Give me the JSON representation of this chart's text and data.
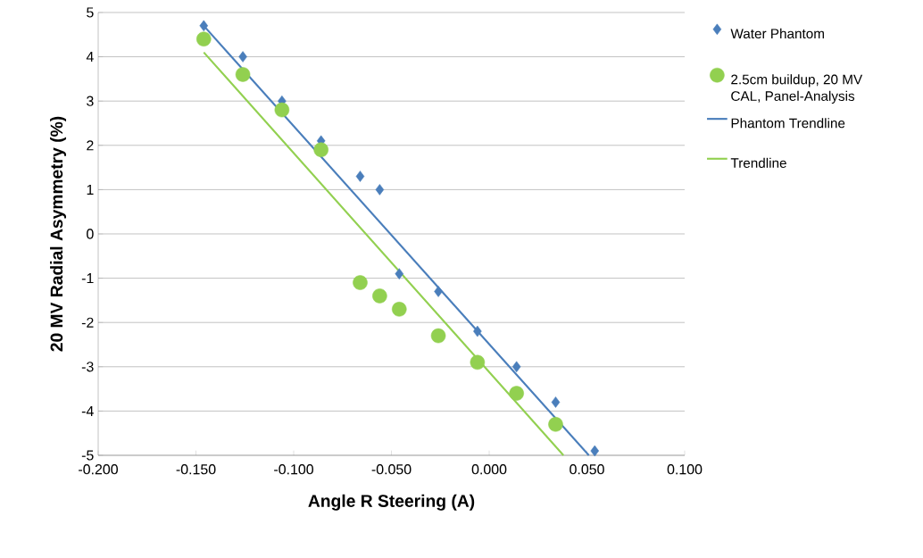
{
  "chart_data": {
    "type": "scatter",
    "xlabel": "Angle R Steering (A)",
    "ylabel": "20 MV Radial Asymmetry (%)",
    "xlim": [
      -0.2,
      0.1
    ],
    "ylim": [
      -5,
      5
    ],
    "xticks": [
      {
        "value": -0.2,
        "label": "-0.200"
      },
      {
        "value": -0.15,
        "label": "-0.150"
      },
      {
        "value": -0.1,
        "label": "-0.100"
      },
      {
        "value": -0.05,
        "label": "-0.050"
      },
      {
        "value": 0,
        "label": "0.000"
      },
      {
        "value": 0.05,
        "label": "0.050"
      },
      {
        "value": 0.1,
        "label": "0.100"
      }
    ],
    "yticks": [
      -5,
      -4,
      -3,
      -2,
      -1,
      0,
      1,
      2,
      3,
      4,
      5
    ],
    "grid": "y",
    "legend": "right",
    "series": [
      {
        "name": "Water Phantom",
        "marker": "diamond",
        "color": "#4a7ebb",
        "x": [
          -0.146,
          -0.126,
          -0.106,
          -0.086,
          -0.066,
          -0.056,
          -0.046,
          -0.026,
          -0.006,
          0.014,
          0.034,
          0.054
        ],
        "values": [
          4.7,
          4.0,
          3.0,
          2.1,
          1.3,
          1.0,
          -0.9,
          -1.3,
          -2.2,
          -3.0,
          -3.8,
          -4.9
        ]
      },
      {
        "name": "2.5cm buildup, 20 MV CAL, Panel-Analysis",
        "marker": "circle",
        "color": "#92d050",
        "x": [
          -0.146,
          -0.126,
          -0.106,
          -0.086,
          -0.066,
          -0.056,
          -0.046,
          -0.026,
          -0.006,
          0.014,
          0.034
        ],
        "values": [
          4.4,
          3.6,
          2.8,
          1.9,
          -1.1,
          -1.4,
          -1.7,
          -2.3,
          -2.9,
          -3.6,
          -4.3
        ]
      },
      {
        "name": "Phantom Trendline",
        "type": "line",
        "marker": "none",
        "color": "#4a7ebb",
        "x": [
          -0.146,
          0.051
        ],
        "values": [
          4.7,
          -5
        ]
      },
      {
        "name": "Trendline",
        "type": "line",
        "marker": "none",
        "color": "#92d050",
        "x": [
          -0.146,
          0.038
        ],
        "values": [
          4.1,
          -5
        ]
      }
    ]
  }
}
